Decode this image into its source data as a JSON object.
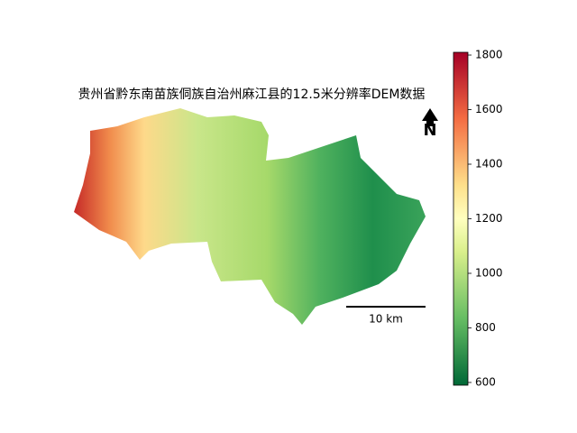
{
  "title": "贵州省黔东南苗族侗族自治州麻江县的12.5米分辨率DEM数据",
  "north_label": "N",
  "scale_bar_label": "10 km",
  "colorbar": {
    "colormap": "RdYlGn_r",
    "lim": [
      590,
      1810
    ],
    "ticks": [
      600,
      800,
      1000,
      1200,
      1400,
      1600,
      1800
    ]
  }
}
